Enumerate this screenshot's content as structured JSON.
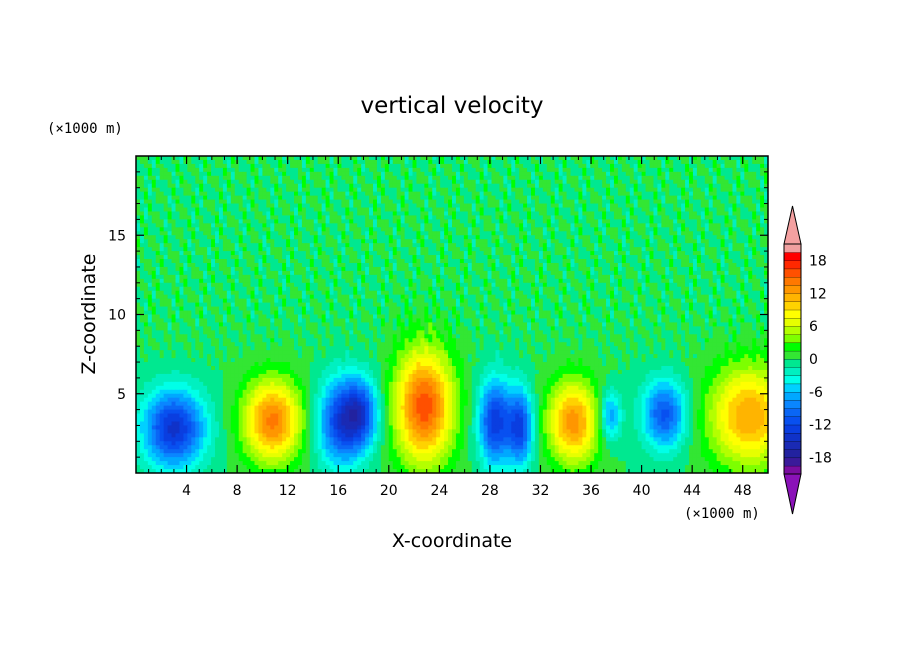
{
  "chart_data": {
    "type": "heatmap",
    "title": "vertical velocity",
    "xlabel": "X-coordinate",
    "ylabel": "Z-coordinate",
    "x_unit": "(×1000 m)",
    "y_unit": "(×1000 m)",
    "xlim": [
      0,
      50
    ],
    "ylim": [
      0,
      20
    ],
    "x_ticks": [
      4,
      8,
      12,
      16,
      20,
      24,
      28,
      32,
      36,
      40,
      44,
      48
    ],
    "y_ticks": [
      5,
      10,
      15
    ],
    "colorbar": {
      "ticks": [
        18,
        12,
        6,
        0,
        -6,
        -12,
        -18
      ],
      "levels": [
        -21,
        -19.5,
        -18,
        -16.5,
        -15,
        -13.5,
        -12,
        -10.5,
        -9,
        -7.5,
        -6,
        -4.5,
        -3,
        -1.5,
        0,
        1.5,
        3,
        4.5,
        6,
        7.5,
        9,
        10.5,
        12,
        13.5,
        15,
        16.5,
        18,
        19.5,
        21
      ],
      "colors": [
        "#7a0da0",
        "#3a1a9a",
        "#22229f",
        "#1a2ab4",
        "#1032c8",
        "#0a3ee0",
        "#0850f0",
        "#0a66f5",
        "#0a86ff",
        "#00a8ff",
        "#00d0ff",
        "#00ffe8",
        "#00f0c0",
        "#00e890",
        "#33e633",
        "#00ff00",
        "#7dff00",
        "#b4ff00",
        "#e6ff00",
        "#ffff00",
        "#ffd200",
        "#ffb400",
        "#ff9600",
        "#ff7800",
        "#ff5000",
        "#ff2800",
        "#ff0000",
        "#f0a0a0"
      ],
      "extend_colors": {
        "low": "#8a12b8",
        "high": "#f4a0a0"
      }
    },
    "features": [
      {
        "x": 3.0,
        "z": 2.8,
        "w": -14,
        "sx": 1.7,
        "sz": 1.7
      },
      {
        "x": 10.8,
        "z": 3.3,
        "w": 14,
        "sx": 1.6,
        "sz": 1.8
      },
      {
        "x": 16.2,
        "z": 3.2,
        "w": -12,
        "sx": 1.3,
        "sz": 1.9
      },
      {
        "x": 17.8,
        "z": 3.8,
        "w": -10,
        "sx": 1.0,
        "sz": 1.5
      },
      {
        "x": 22.8,
        "z": 4.2,
        "w": 16,
        "sx": 1.6,
        "sz": 2.5
      },
      {
        "x": 28.4,
        "z": 3.2,
        "w": -13,
        "sx": 0.9,
        "sz": 1.9
      },
      {
        "x": 30.4,
        "z": 2.9,
        "w": -12,
        "sx": 0.7,
        "sz": 1.7
      },
      {
        "x": 34.6,
        "z": 3.2,
        "w": 13,
        "sx": 1.4,
        "sz": 1.8
      },
      {
        "x": 37.5,
        "z": 3.6,
        "w": -8,
        "sx": 0.6,
        "sz": 1.1
      },
      {
        "x": 41.8,
        "z": 3.7,
        "w": -11,
        "sx": 1.2,
        "sz": 1.5
      },
      {
        "x": 48.5,
        "z": 3.6,
        "w": 12,
        "sx": 2.2,
        "sz": 2.2
      }
    ]
  }
}
